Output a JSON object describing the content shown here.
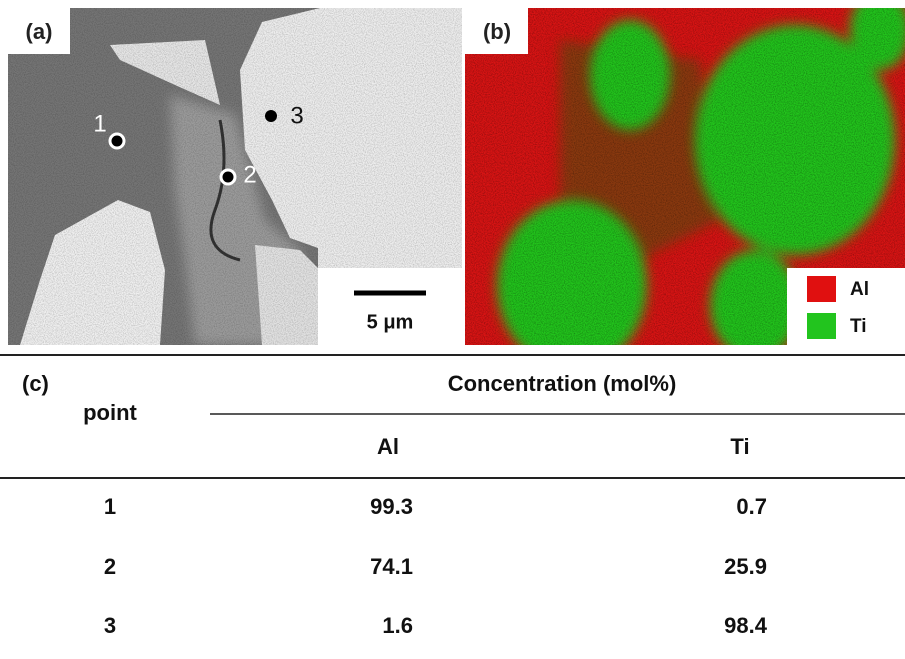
{
  "panels": {
    "a": {
      "label": "(a)",
      "points": [
        "1",
        "2",
        "3"
      ],
      "scale_bar": "5 μm"
    },
    "b": {
      "label": "(b)",
      "legend": [
        "Al",
        "Ti"
      ]
    }
  },
  "table": {
    "label": "(c)",
    "header": {
      "point": "point",
      "group": "Concentration (mol%)",
      "columns": [
        "Al",
        "Ti"
      ]
    },
    "rows": [
      [
        "1",
        "99.3",
        "0.7"
      ],
      [
        "2",
        "74.1",
        "25.9"
      ],
      [
        "3",
        "1.6",
        "98.4"
      ]
    ]
  }
}
